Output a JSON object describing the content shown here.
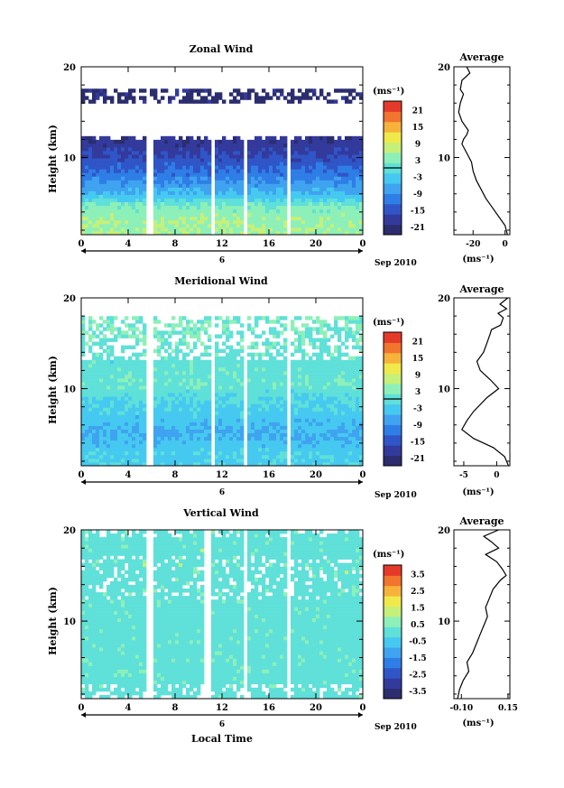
{
  "x_axis_label": "Local Time",
  "date_label": "Sep 2010",
  "day_label": "6",
  "panels": [
    {
      "id": "zonal",
      "title": "Zonal Wind",
      "ylabel": "Height (km)",
      "unit": "(ms⁻¹)",
      "profile_title": "Average",
      "profile_unit": "(ms⁻¹)"
    },
    {
      "id": "meridional",
      "title": "Meridional Wind",
      "ylabel": "Height (km)",
      "unit": "(ms⁻¹)",
      "profile_title": "Average",
      "profile_unit": "(ms⁻¹)"
    },
    {
      "id": "vertical",
      "title": "Vertical Wind",
      "ylabel": "Height (km)",
      "unit": "(ms⁻¹)",
      "profile_title": "Average",
      "profile_unit": "(ms⁻¹)"
    }
  ],
  "chart_data": [
    {
      "type": "heatmap",
      "title": "Zonal Wind",
      "xlabel": "",
      "ylabel": "Height (km)",
      "x_ticks": [
        "0",
        "4",
        "8",
        "12",
        "16",
        "20",
        "0"
      ],
      "y_ticks": [
        "20",
        "10"
      ],
      "xlim": [
        0,
        24
      ],
      "ylim": [
        1.5,
        20
      ],
      "colorbar_ticks": [
        "21",
        "15",
        "9",
        "3",
        "-3",
        "-9",
        "-15",
        "-21"
      ],
      "colorbar_range": [
        -24,
        24
      ],
      "data_gaps_hours": [
        [
          5.5,
          6.0
        ],
        [
          11.0,
          11.4
        ],
        [
          13.7,
          14.2
        ],
        [
          17.6,
          17.9
        ]
      ],
      "description_rows": [
        {
          "height_km": 3.0,
          "value": 5
        },
        {
          "height_km": 4.5,
          "value": 3
        },
        {
          "height_km": 6.0,
          "value": -5
        },
        {
          "height_km": 8.0,
          "value": -11
        },
        {
          "height_km": 10.0,
          "value": -16
        },
        {
          "height_km": 12.0,
          "value": -20
        },
        {
          "height_km": 16.5,
          "value": -22
        }
      ]
    },
    {
      "type": "line",
      "title": "Average",
      "xlabel": "(ms⁻¹)",
      "ylabel": "",
      "x_ticks": [
        "-20",
        "0"
      ],
      "y_ticks": [
        "20",
        "10"
      ],
      "xlim": [
        -32,
        3
      ],
      "ylim": [
        1.5,
        20
      ],
      "series": [
        {
          "x": [
            1.5,
            0,
            -4,
            -8,
            -12,
            -15,
            -18,
            -20,
            -21,
            -24,
            -27,
            -26,
            -24,
            -23,
            -27,
            -29,
            -28,
            -26,
            -28,
            -27,
            -22,
            -24
          ],
          "y": [
            1.5,
            2.5,
            3.5,
            4.5,
            5.5,
            6.5,
            7.5,
            8.5,
            9.5,
            10.5,
            11.5,
            12.0,
            12.5,
            13.0,
            14.0,
            15.0,
            16.0,
            17.0,
            17.5,
            18.5,
            19.3,
            20.0
          ]
        }
      ]
    },
    {
      "type": "heatmap",
      "title": "Meridional Wind",
      "xlabel": "",
      "ylabel": "Height (km)",
      "x_ticks": [
        "0",
        "4",
        "8",
        "12",
        "16",
        "20",
        "0"
      ],
      "y_ticks": [
        "20",
        "10"
      ],
      "xlim": [
        0,
        24
      ],
      "ylim": [
        1.5,
        20
      ],
      "colorbar_ticks": [
        "21",
        "15",
        "9",
        "3",
        "-3",
        "-9",
        "-15",
        "-21"
      ],
      "colorbar_range": [
        -24,
        24
      ],
      "data_gaps_hours": [
        [
          5.5,
          6.0
        ],
        [
          11.0,
          11.4
        ],
        [
          13.7,
          14.2
        ],
        [
          17.6,
          17.9
        ]
      ],
      "description_rows": [
        {
          "height_km": 3.0,
          "value": -3
        },
        {
          "height_km": 5.0,
          "value": -6
        },
        {
          "height_km": 7.5,
          "value": -3
        },
        {
          "height_km": 10.5,
          "value": 1
        },
        {
          "height_km": 13.0,
          "value": 0
        },
        {
          "height_km": 17.0,
          "value": 2
        }
      ]
    },
    {
      "type": "line",
      "title": "Average",
      "xlabel": "(ms⁻¹)",
      "ylabel": "",
      "x_ticks": [
        "-5",
        "0"
      ],
      "y_ticks": [
        "20",
        "10"
      ],
      "xlim": [
        -6.5,
        2.0
      ],
      "ylim": [
        1.5,
        20
      ],
      "series": [
        {
          "x": [
            1.8,
            1.2,
            -0.5,
            -3.5,
            -5.3,
            -4.5,
            -3.5,
            -1.5,
            0.3,
            -1.0,
            -2.5,
            -3.0,
            -2.0,
            -1.5,
            -1.0,
            -0.8,
            0.6,
            1.0,
            0.2,
            1.5,
            0.5,
            1.7
          ],
          "y": [
            1.5,
            2.5,
            3.5,
            4.5,
            5.5,
            6.5,
            7.5,
            9.0,
            10.0,
            11.0,
            12.0,
            13.0,
            14.0,
            15.0,
            16.0,
            16.5,
            17.0,
            17.8,
            18.3,
            18.8,
            19.3,
            20.0
          ]
        }
      ]
    },
    {
      "type": "heatmap",
      "title": "Vertical Wind",
      "xlabel": "Local Time",
      "ylabel": "Height (km)",
      "x_ticks": [
        "0",
        "4",
        "8",
        "12",
        "16",
        "20",
        "0"
      ],
      "y_ticks": [
        "20",
        "10"
      ],
      "xlim": [
        0,
        24
      ],
      "ylim": [
        1.5,
        20
      ],
      "colorbar_ticks": [
        "3.5",
        "2.5",
        "1.5",
        "0.5",
        "-0.5",
        "-1.5",
        "-2.5",
        "-3.5"
      ],
      "colorbar_range": [
        -4,
        4
      ],
      "data_gaps_hours": [
        [
          5.5,
          6.0
        ],
        [
          10.5,
          11.0
        ],
        [
          13.7,
          14.1
        ],
        [
          17.6,
          17.9
        ]
      ],
      "description_rows": [
        {
          "height_km": 5.0,
          "value": 0.0
        },
        {
          "height_km": 10.0,
          "value": 0.0
        },
        {
          "height_km": 15.0,
          "value": 0.1
        }
      ]
    },
    {
      "type": "line",
      "title": "Average",
      "xlabel": "(ms⁻¹)",
      "ylabel": "",
      "x_ticks": [
        "-0.10",
        "0.15"
      ],
      "y_ticks": [
        "20",
        "10"
      ],
      "xlim": [
        -0.14,
        0.16
      ],
      "ylim": [
        1.5,
        20
      ],
      "series": [
        {
          "x": [
            -0.12,
            -0.11,
            -0.09,
            -0.06,
            -0.07,
            -0.04,
            -0.02,
            0.0,
            0.02,
            0.04,
            0.03,
            0.05,
            0.07,
            0.11,
            0.14,
            0.12,
            0.09,
            0.03,
            0.1,
            0.06,
            0.02,
            0.1
          ],
          "y": [
            1.5,
            2.5,
            3.5,
            4.5,
            5.5,
            6.5,
            7.5,
            8.5,
            9.5,
            10.5,
            11.5,
            12.5,
            13.5,
            14.5,
            15.0,
            15.7,
            16.5,
            17.3,
            18.0,
            18.7,
            19.3,
            20.0
          ]
        }
      ]
    }
  ]
}
